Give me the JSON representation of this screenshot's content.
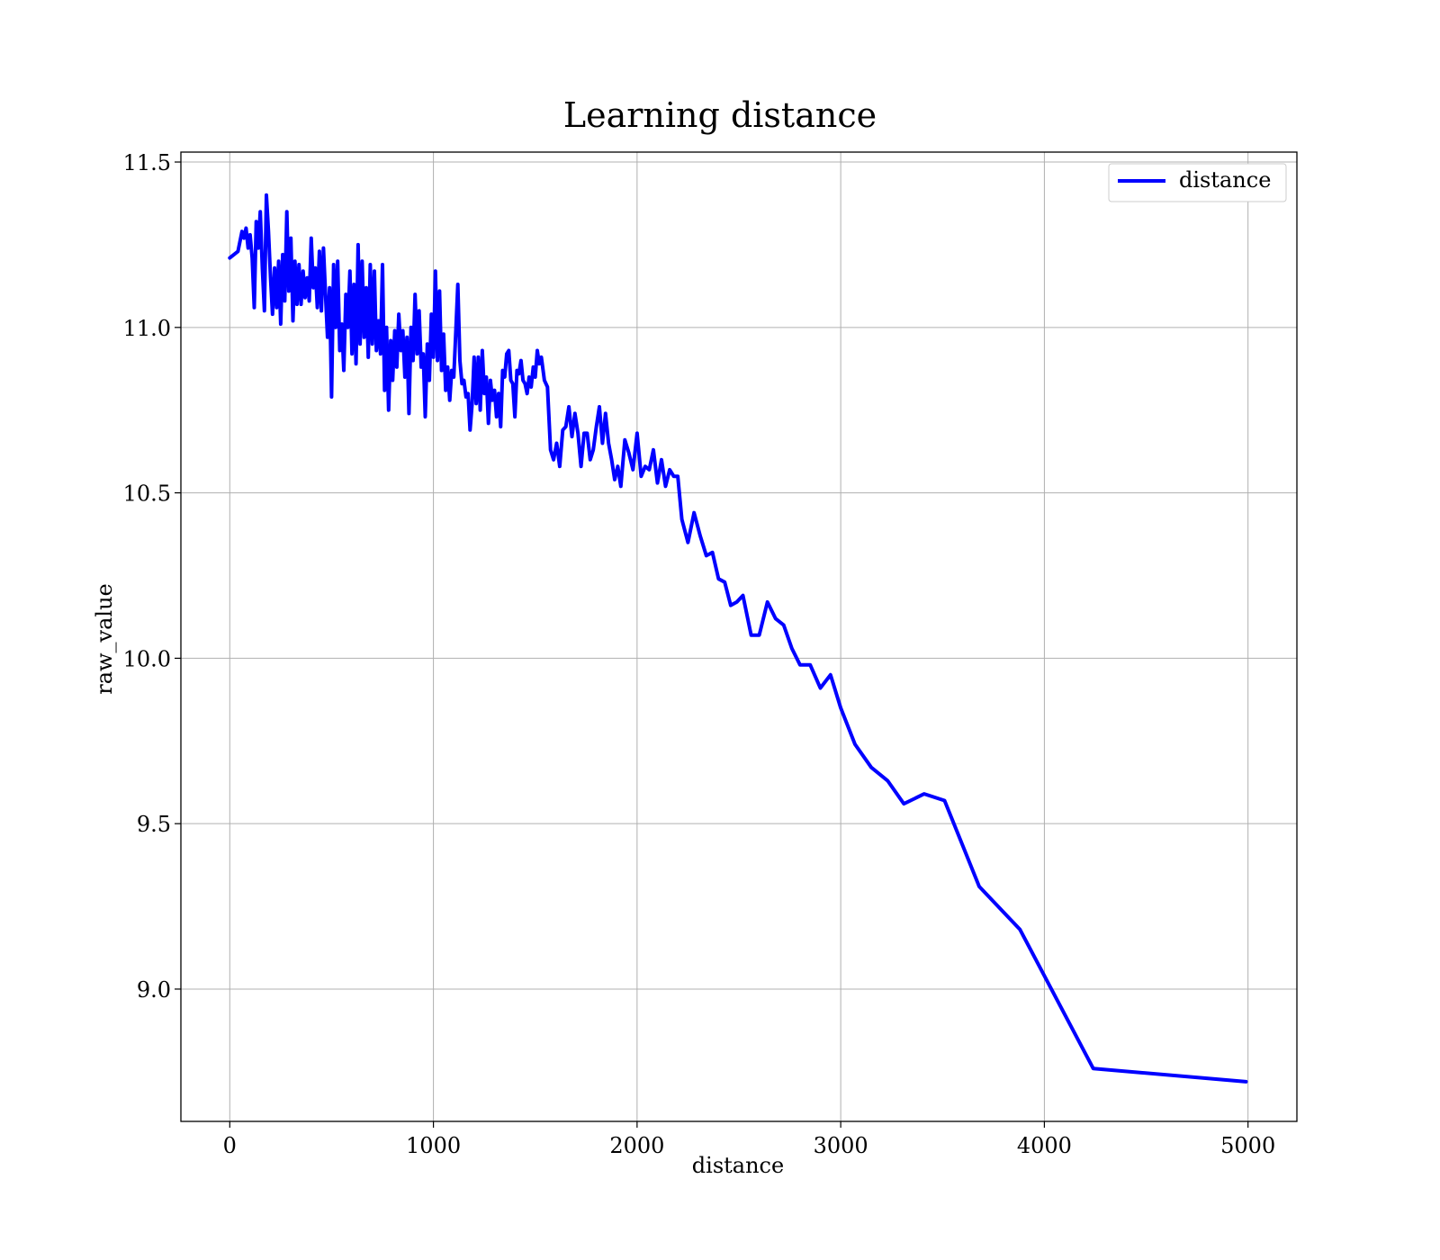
{
  "chart_data": {
    "type": "line",
    "title": "Learning distance",
    "xlabel": "distance",
    "ylabel": "raw_value",
    "xlim": [
      -240,
      5240
    ],
    "ylim": [
      8.6,
      11.53
    ],
    "xticks": [
      0,
      1000,
      2000,
      3000,
      4000,
      5000
    ],
    "xtick_labels": [
      "0",
      "1000",
      "2000",
      "3000",
      "4000",
      "5000"
    ],
    "yticks": [
      9.0,
      9.5,
      10.0,
      10.5,
      11.0,
      11.5
    ],
    "ytick_labels": [
      "9.0",
      "9.5",
      "10.0",
      "10.5",
      "11.0",
      "11.5"
    ],
    "grid": true,
    "legend_position": "upper right",
    "colors": {
      "series": "#0000ff",
      "grid": "#b0b0b0",
      "frame": "#000000"
    },
    "series": [
      {
        "name": "distance",
        "x": [
          0,
          40,
          60,
          70,
          80,
          90,
          100,
          110,
          120,
          130,
          140,
          150,
          160,
          170,
          180,
          190,
          200,
          210,
          220,
          230,
          240,
          250,
          260,
          270,
          280,
          290,
          300,
          310,
          320,
          330,
          340,
          350,
          360,
          370,
          380,
          390,
          400,
          410,
          420,
          430,
          440,
          450,
          460,
          470,
          480,
          490,
          500,
          510,
          520,
          530,
          540,
          550,
          560,
          570,
          580,
          590,
          600,
          610,
          620,
          630,
          640,
          650,
          660,
          670,
          680,
          690,
          700,
          710,
          720,
          730,
          740,
          750,
          760,
          770,
          780,
          790,
          800,
          810,
          820,
          830,
          840,
          850,
          860,
          870,
          880,
          890,
          900,
          910,
          920,
          930,
          940,
          950,
          960,
          970,
          980,
          990,
          1000,
          1010,
          1020,
          1030,
          1040,
          1050,
          1060,
          1070,
          1080,
          1090,
          1100,
          1110,
          1120,
          1130,
          1140,
          1150,
          1160,
          1170,
          1180,
          1190,
          1200,
          1210,
          1220,
          1230,
          1240,
          1250,
          1260,
          1270,
          1280,
          1290,
          1300,
          1310,
          1320,
          1330,
          1340,
          1350,
          1360,
          1370,
          1380,
          1390,
          1400,
          1410,
          1420,
          1430,
          1440,
          1450,
          1460,
          1470,
          1480,
          1490,
          1500,
          1510,
          1520,
          1530,
          1545,
          1560,
          1575,
          1590,
          1605,
          1620,
          1635,
          1650,
          1665,
          1680,
          1695,
          1710,
          1725,
          1740,
          1755,
          1770,
          1785,
          1800,
          1815,
          1830,
          1845,
          1860,
          1875,
          1890,
          1905,
          1920,
          1940,
          1960,
          1980,
          2000,
          2020,
          2040,
          2060,
          2080,
          2100,
          2120,
          2140,
          2160,
          2180,
          2200,
          2220,
          2250,
          2280,
          2310,
          2340,
          2370,
          2400,
          2430,
          2460,
          2490,
          2520,
          2560,
          2600,
          2640,
          2680,
          2720,
          2760,
          2800,
          2850,
          2900,
          2950,
          3000,
          3070,
          3150,
          3230,
          3310,
          3410,
          3510,
          3680,
          3880,
          4240,
          4990
        ],
        "y": [
          11.21,
          11.23,
          11.29,
          11.27,
          11.3,
          11.24,
          11.28,
          11.21,
          11.06,
          11.32,
          11.24,
          11.35,
          11.18,
          11.05,
          11.4,
          11.29,
          11.15,
          11.04,
          11.18,
          11.06,
          11.2,
          11.01,
          11.22,
          11.08,
          11.35,
          11.11,
          11.27,
          11.02,
          11.2,
          11.07,
          11.19,
          11.07,
          11.17,
          11.09,
          11.15,
          11.08,
          11.27,
          11.12,
          11.18,
          11.06,
          11.23,
          11.05,
          11.24,
          11.1,
          10.97,
          11.12,
          10.79,
          11.19,
          11.0,
          11.2,
          10.93,
          11.01,
          10.87,
          11.1,
          11.0,
          11.17,
          10.92,
          11.13,
          10.89,
          11.25,
          10.95,
          11.2,
          10.97,
          11.12,
          10.91,
          11.19,
          10.95,
          11.17,
          10.93,
          11.02,
          10.92,
          11.19,
          10.81,
          11.0,
          10.75,
          10.96,
          10.84,
          10.99,
          10.88,
          11.04,
          10.93,
          10.99,
          10.85,
          10.97,
          10.74,
          11.0,
          10.9,
          11.1,
          10.92,
          11.05,
          10.88,
          10.92,
          10.73,
          10.95,
          10.84,
          11.04,
          10.91,
          11.17,
          10.9,
          11.11,
          10.87,
          10.98,
          10.81,
          10.88,
          10.78,
          10.87,
          10.85,
          10.99,
          11.13,
          10.9,
          10.83,
          10.84,
          10.79,
          10.8,
          10.69,
          10.77,
          10.91,
          10.77,
          10.91,
          10.75,
          10.93,
          10.8,
          10.85,
          10.71,
          10.84,
          10.78,
          10.81,
          10.73,
          10.8,
          10.7,
          10.87,
          10.85,
          10.92,
          10.93,
          10.84,
          10.83,
          10.73,
          10.87,
          10.86,
          10.9,
          10.84,
          10.83,
          10.8,
          10.85,
          10.82,
          10.88,
          10.85,
          10.93,
          10.89,
          10.91,
          10.84,
          10.82,
          10.63,
          10.6,
          10.65,
          10.58,
          10.69,
          10.7,
          10.76,
          10.67,
          10.74,
          10.68,
          10.58,
          10.68,
          10.68,
          10.6,
          10.63,
          10.7,
          10.76,
          10.65,
          10.74,
          10.65,
          10.6,
          10.54,
          10.58,
          10.52,
          10.66,
          10.62,
          10.57,
          10.68,
          10.55,
          10.58,
          10.57,
          10.63,
          10.53,
          10.6,
          10.52,
          10.57,
          10.55,
          10.55,
          10.42,
          10.35,
          10.44,
          10.37,
          10.31,
          10.32,
          10.24,
          10.23,
          10.16,
          10.17,
          10.19,
          10.07,
          10.07,
          10.17,
          10.12,
          10.1,
          10.03,
          9.98,
          9.98,
          9.91,
          9.95,
          9.85,
          9.74,
          9.67,
          9.63,
          9.56,
          9.59,
          9.57,
          9.31,
          9.18,
          8.76,
          8.72
        ]
      }
    ]
  }
}
